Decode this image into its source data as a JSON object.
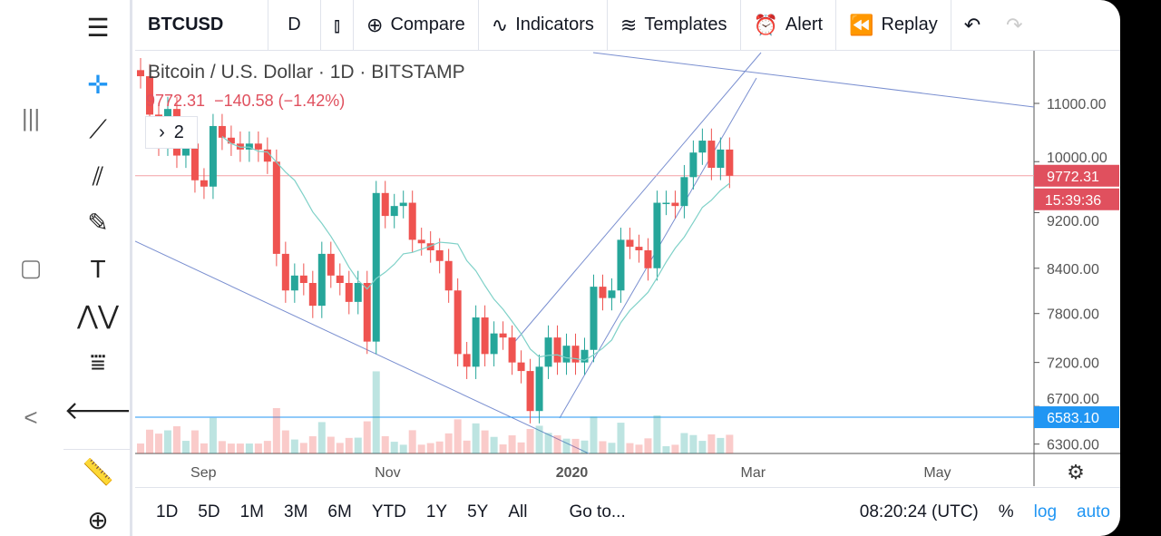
{
  "toolbar": {
    "symbol": "BTCUSD",
    "interval": "D",
    "compare": "Compare",
    "indicators": "Indicators",
    "templates": "Templates",
    "alert": "Alert",
    "replay": "Replay"
  },
  "legend": {
    "title": "Bitcoin / U.S. Dollar · 1D · BITSTAMP",
    "price": "9772.31",
    "change": "−140.58 (−1.42%)",
    "collapsed_count": "2"
  },
  "price_axis": {
    "ticks": [
      "11000.00",
      "10000.00",
      "9200.00",
      "8400.00",
      "7800.00",
      "7200.00",
      "6700.00",
      "6300.00"
    ],
    "last_price": "9772.31",
    "countdown": "15:39:36",
    "horizontal_line": "6583.10"
  },
  "time_axis": {
    "ticks": [
      "Sep",
      "Nov",
      "2020",
      "Mar",
      "May"
    ]
  },
  "bottom": {
    "ranges": [
      "1D",
      "5D",
      "1M",
      "3M",
      "6M",
      "YTD",
      "1Y",
      "5Y",
      "All"
    ],
    "goto": "Go to...",
    "time": "08:20:24 (UTC)",
    "percent": "%",
    "log": "log",
    "auto": "auto"
  },
  "colors": {
    "up": "#26a69a",
    "down": "#ef5350",
    "accent": "#2196f3"
  },
  "chart_data": {
    "type": "candlestick",
    "scale": "log",
    "ylim": [
      6150,
      11900
    ],
    "start": "2019-08-10",
    "step_days": 3,
    "closes": [
      11500,
      10800,
      10300,
      10900,
      10100,
      10300,
      9700,
      9600,
      10600,
      10400,
      10300,
      10200,
      10300,
      10200,
      10000,
      8600,
      8100,
      8300,
      8200,
      7900,
      8600,
      8300,
      8200,
      7950,
      8200,
      7450,
      9500,
      9150,
      9300,
      9350,
      8800,
      8750,
      8650,
      8500,
      8100,
      7300,
      7150,
      7750,
      7300,
      7550,
      7500,
      7200,
      7100,
      6650,
      7150,
      7500,
      7200,
      7400,
      7200,
      7350,
      8150,
      8000,
      8100,
      8800,
      8700,
      8650,
      8400,
      9350,
      9350,
      9300,
      9750,
      10150,
      10350,
      9900,
      10200,
      9772
    ]
  }
}
